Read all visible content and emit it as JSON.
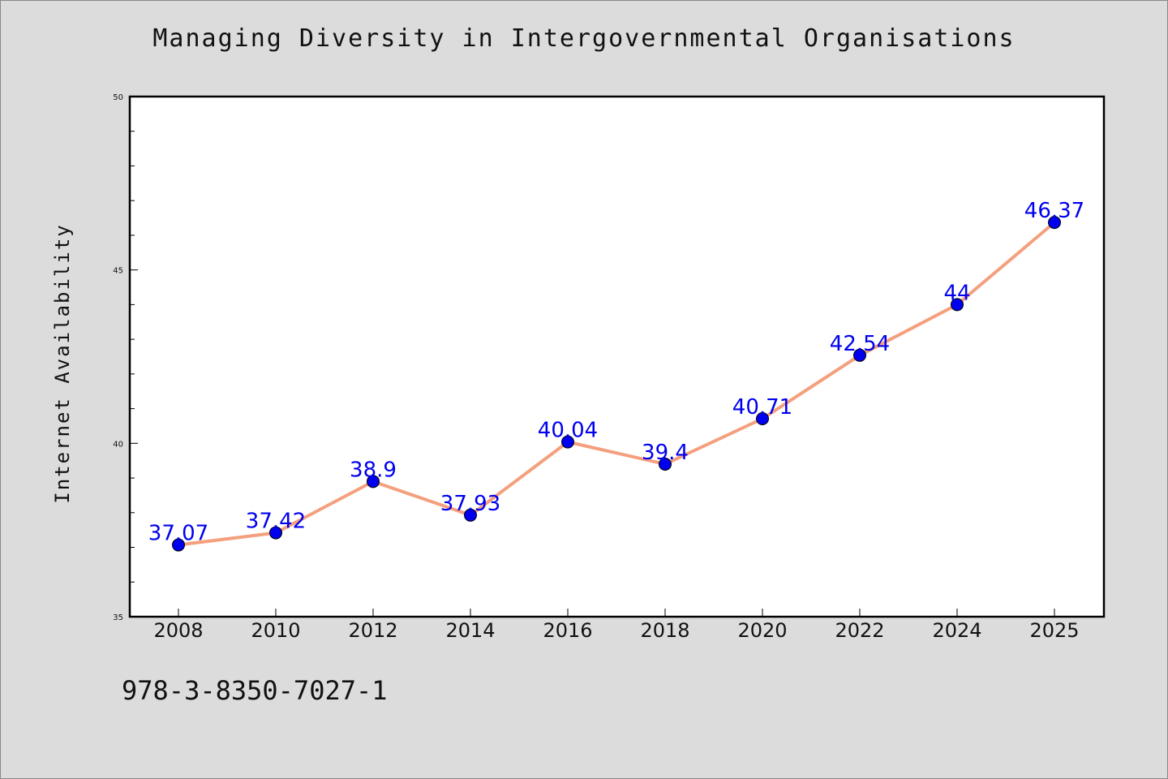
{
  "chart_data": {
    "type": "line",
    "title": "Managing Diversity in Intergovernmental Organisations",
    "xlabel": "",
    "ylabel": "Internet Availability",
    "categories": [
      "2008",
      "2010",
      "2012",
      "2014",
      "2016",
      "2018",
      "2020",
      "2022",
      "2024",
      "2025"
    ],
    "series": [
      {
        "values": [
          37.07,
          37.42,
          38.9,
          37.93,
          40.04,
          39.4,
          40.71,
          42.54,
          44,
          46.37
        ],
        "data_labels": [
          "37.07",
          "37.42",
          "38.9",
          "37.93",
          "40.04",
          "39.4",
          "40.71",
          "42.54",
          "44",
          "46.37"
        ]
      }
    ],
    "ylim": [
      35,
      50
    ],
    "y_ticks": [
      "35",
      "40",
      "45",
      "50"
    ],
    "grid": false,
    "legend": "none",
    "colors": {
      "line": "#f4a07e",
      "marker": "#0000ee",
      "label": "#0000ee",
      "plot_bg": "#ffffff",
      "page_bg": "#dcdcdc"
    }
  },
  "footer": {
    "isbn": "978-3-8350-7027-1"
  }
}
